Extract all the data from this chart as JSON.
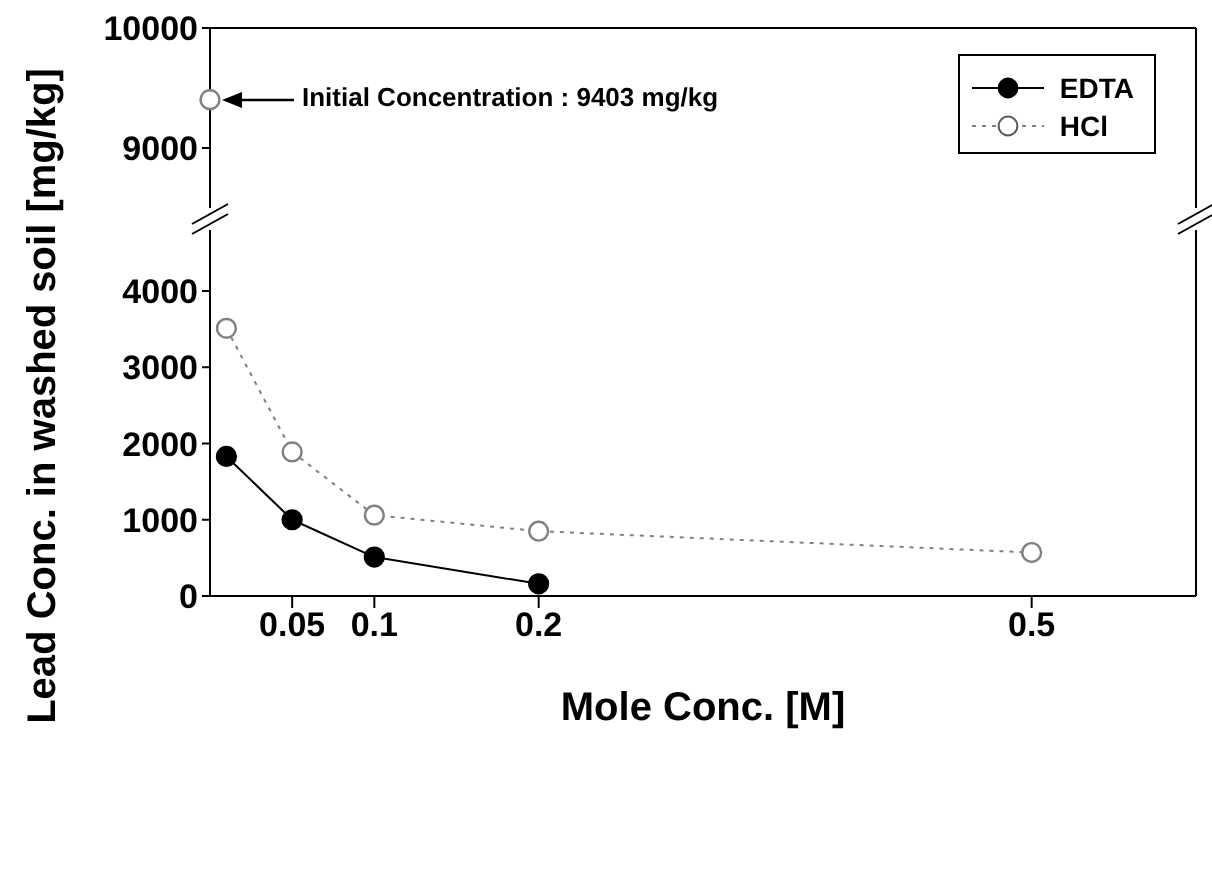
{
  "chart_data": [
    {
      "type": "line",
      "ylabel": "Lead Conc. in washed soil [mg/kg]",
      "x": [
        0
      ],
      "xlim": [
        0,
        0.6
      ],
      "ylim": [
        8500,
        10000
      ],
      "yticks": [
        9000,
        10000
      ],
      "tick_labels": "y",
      "marker": "circle",
      "legend": "top right",
      "annotations": [
        "Initial Concentration : 9403 mg/kg"
      ],
      "series": [
        {
          "name": "EDTA",
          "color": "#000000",
          "line_style": "solid",
          "values": [
            null
          ]
        },
        {
          "name": "HCl",
          "color": "#808080",
          "line_style": "dotted",
          "values": [
            9403
          ]
        }
      ]
    },
    {
      "type": "line",
      "xlabel": "Mole Conc. [M]",
      "x": [
        0.01,
        0.05,
        0.1,
        0.2,
        0.5
      ],
      "xlim": [
        0,
        0.6
      ],
      "xticks": [
        0.05,
        0.1,
        0.2,
        0.5
      ],
      "ylim": [
        0,
        4800
      ],
      "yticks": [
        0,
        1000,
        2000,
        3000,
        4000
      ],
      "marker": "circle",
      "series": [
        {
          "color": "#000000",
          "line_style": "solid",
          "values": [
            1830,
            1000,
            510,
            160,
            null
          ]
        },
        {
          "color": "#808080",
          "line_style": "dotted",
          "values": [
            3510,
            1890,
            1060,
            850,
            570
          ]
        }
      ]
    }
  ]
}
